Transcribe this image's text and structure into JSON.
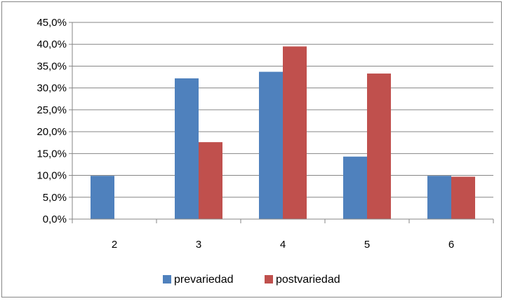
{
  "chart_data": {
    "type": "bar",
    "title": "",
    "xlabel": "",
    "ylabel": "",
    "categories": [
      "2",
      "3",
      "4",
      "5",
      "6"
    ],
    "series": [
      {
        "name": "prevariedad",
        "color": "#4f81bd",
        "values": [
          9.9,
          32.2,
          33.7,
          14.3,
          9.9
        ]
      },
      {
        "name": "postvariedad",
        "color": "#c0504d",
        "values": [
          0.0,
          17.6,
          39.5,
          33.3,
          9.7
        ]
      }
    ],
    "ylim": [
      0,
      45
    ],
    "y_ticks": [
      "0,0%",
      "5,0%",
      "10,0%",
      "15,0%",
      "20,0%",
      "25,0%",
      "30,0%",
      "35,0%",
      "40,0%",
      "45,0%"
    ],
    "grid": true,
    "legend_position": "bottom"
  }
}
